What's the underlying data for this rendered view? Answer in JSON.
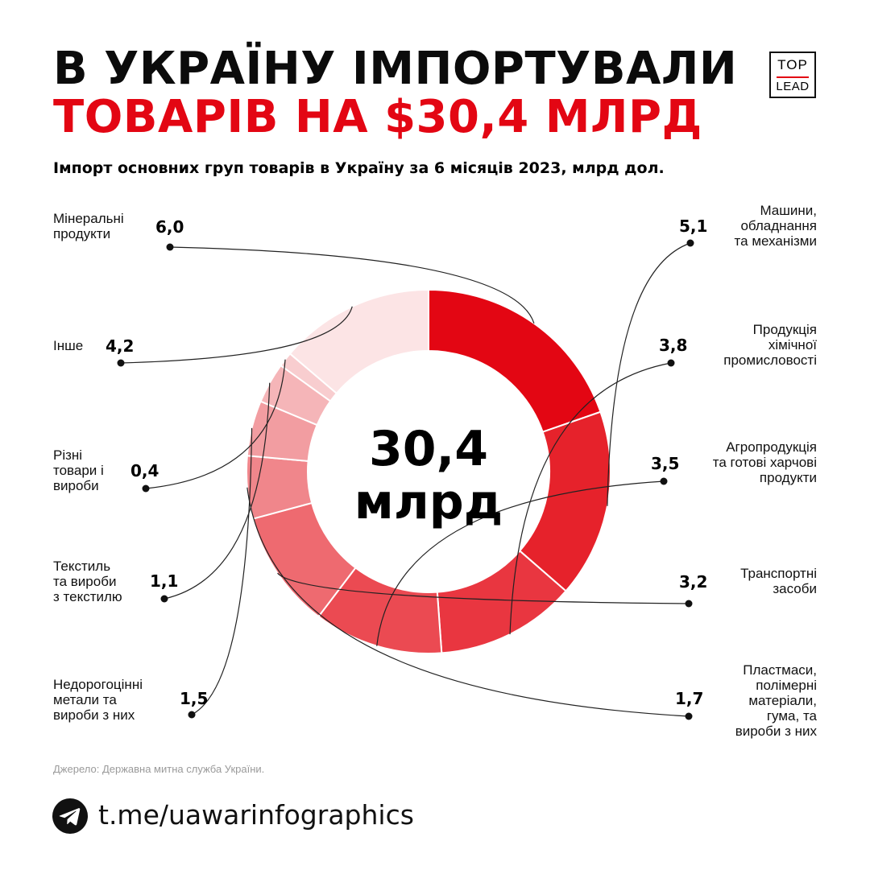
{
  "header": {
    "title_line1": "В УКРАЇНУ ІМПОРТУВАЛИ",
    "title_line2": "ТОВАРІВ НА $30,4 МЛРД",
    "subtitle": "Імпорт основних груп товарів в Україну за 6 місяців 2023, млрд дол."
  },
  "logo": {
    "top": "TOP",
    "bottom": "LEAD"
  },
  "center": {
    "value": "30,4",
    "unit": "млрд"
  },
  "chart_data": {
    "type": "pie",
    "title": "Імпорт основних груп товарів в Україну за 6 місяців 2023, млрд дол.",
    "total": 30.4,
    "categories": [
      "Мінеральні продукти",
      "Машини, обладнання та механізми",
      "Продукція хімічної промисловості",
      "Агропродукція та готові харчові продукти",
      "Транспортні засоби",
      "Пластмаси, полімерні матеріали, гума, та вироби з них",
      "Недорогоцінні метали та вироби з них",
      "Текстиль та вироби з текстилю",
      "Різні товари і вироби",
      "Інше"
    ],
    "labels_display": [
      "Мінеральні\nпродукти",
      "Машини,\nобладнання\nта механізми",
      "Продукція\nхімічної\nпромисловості",
      "Агропродукція\nта готові харчові\nпродукти",
      "Транспортні\nзасоби",
      "Пластмаси,\nполімерні\nматеріали,\nгума, та\nвироби з них",
      "Недорогоцінні\nметали та\nвироби з них",
      "Текстиль\nта вироби\nз текстилю",
      "Різні\nтовари і\nвироби",
      "Інше"
    ],
    "values": [
      6.0,
      5.1,
      3.8,
      3.5,
      3.2,
      1.7,
      1.5,
      1.1,
      0.4,
      4.2
    ],
    "value_labels": [
      "6,0",
      "5,1",
      "3,8",
      "3,5",
      "3,2",
      "1,7",
      "1,5",
      "1,1",
      "0,4",
      "4,2"
    ],
    "colors": [
      "#e30613",
      "#e6222b",
      "#e93640",
      "#eb4a52",
      "#ee6a70",
      "#f0868b",
      "#f29da1",
      "#f5b5b8",
      "#f8cdcf",
      "#fce4e5"
    ]
  },
  "source": "Джерело: Державна митна служба України.",
  "footer": {
    "telegram_icon": "telegram-icon",
    "link": "t.me/uawarinfographics"
  }
}
